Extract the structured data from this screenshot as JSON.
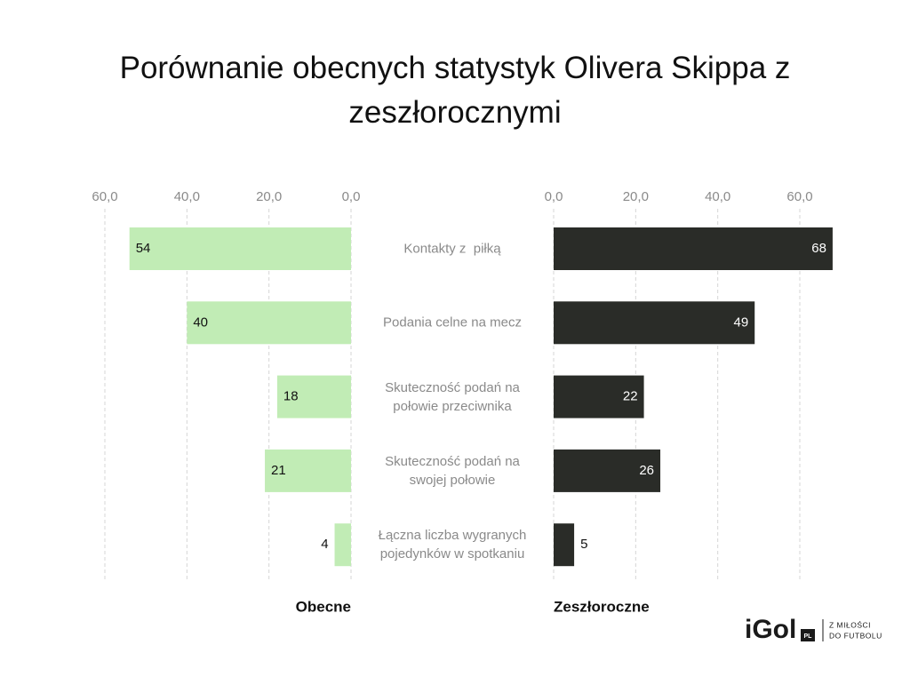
{
  "chart_data": {
    "type": "butterfly",
    "title": "Porównanie obecnych statystyk Olivera Skippa z zeszłorocznymi",
    "categories": [
      "Kontakty z  piłką",
      "Podania celne na mecz",
      "Skuteczność podań na\npołowie przeciwnika",
      "Skuteczność podań na\nswojej połowie",
      "Łączna liczba wygranych\npojedynków w spotkaniu"
    ],
    "series": [
      {
        "name": "Obecne",
        "color": "#c1ecb5",
        "values": [
          54,
          40,
          18,
          21,
          4
        ]
      },
      {
        "name": "Zeszłoroczne",
        "color": "#2a2c28",
        "values": [
          68,
          49,
          22,
          26,
          5
        ]
      }
    ],
    "xlim": [
      0,
      60
    ],
    "xticks": [
      {
        "value": 0,
        "label": "0,0"
      },
      {
        "value": 20,
        "label": "20,0"
      },
      {
        "value": 40,
        "label": "40,0"
      },
      {
        "value": 60,
        "label": "60,0"
      }
    ],
    "grid": true
  },
  "logo": {
    "brand": "iGol",
    "badge": "PL",
    "tagline_line1": "Z MIŁOŚCI",
    "tagline_line2": "DO FUTBOLU"
  }
}
